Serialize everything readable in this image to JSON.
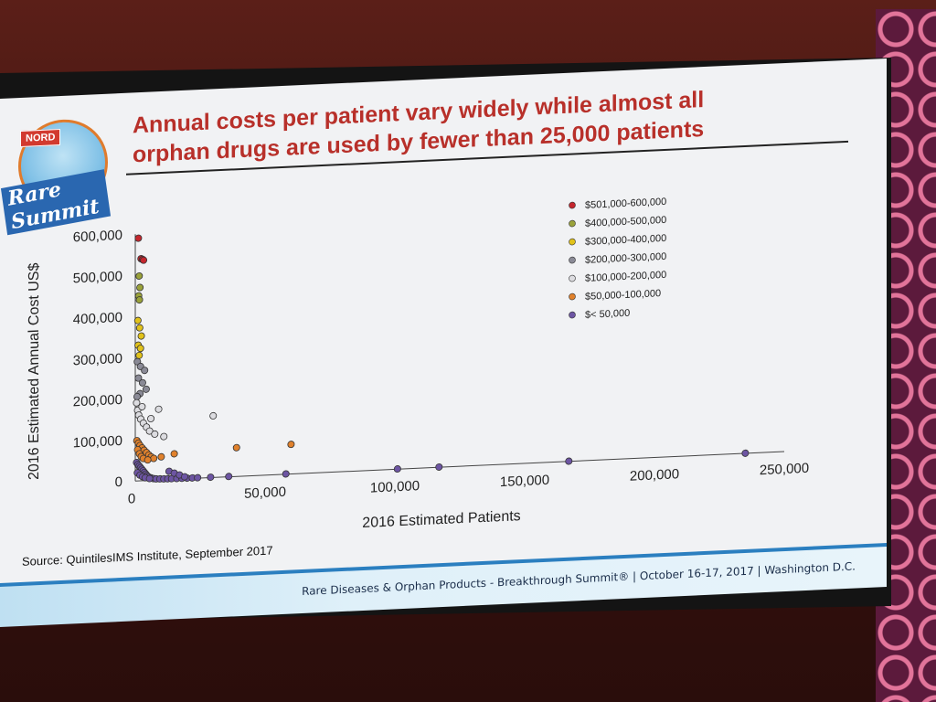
{
  "slide": {
    "title_line1": "Annual costs per patient vary widely while almost all",
    "title_line2": "orphan drugs are used by fewer than 25,000 patients",
    "logo_badge": "NORD",
    "logo_text": "Rare Summit",
    "source": "Source: QuintilesIMS Institute, September 2017",
    "footer": "Rare Diseases & Orphan Products - Breakthrough Summit® | October 16-17, 2017 | Washington D.C."
  },
  "chart_data": {
    "type": "scatter",
    "xlabel": "2016 Estimated Patients",
    "ylabel": "2016 Estimated Annual Cost US$",
    "xlim": [
      0,
      250000
    ],
    "ylim": [
      0,
      600000
    ],
    "x_ticks": [
      "0",
      "50,000",
      "100,000",
      "150,000",
      "200,000",
      "250,000"
    ],
    "y_ticks": [
      "0",
      "100,000",
      "200,000",
      "300,000",
      "400,000",
      "500,000",
      "600,000"
    ],
    "legend_placement": "top-right",
    "series": [
      {
        "name": "$501,000-600,000",
        "color": "#c4262d",
        "points": [
          [
            1200,
            590000
          ],
          [
            2200,
            540000
          ],
          [
            2800,
            538000
          ],
          [
            3200,
            536000
          ]
        ]
      },
      {
        "name": "$400,000-500,000",
        "color": "#9aa23a",
        "points": [
          [
            1500,
            498000
          ],
          [
            1800,
            470000
          ],
          [
            1300,
            450000
          ],
          [
            1600,
            440000
          ]
        ]
      },
      {
        "name": "$300,000-400,000",
        "color": "#e1c21a",
        "points": [
          [
            1000,
            390000
          ],
          [
            1700,
            372000
          ],
          [
            2300,
            352000
          ],
          [
            1100,
            330000
          ],
          [
            2000,
            322000
          ],
          [
            1500,
            305000
          ]
        ]
      },
      {
        "name": "$200,000-300,000",
        "color": "#8a8a96",
        "points": [
          [
            800,
            290000
          ],
          [
            2000,
            278000
          ],
          [
            3600,
            268000
          ],
          [
            1200,
            250000
          ],
          [
            2800,
            238000
          ],
          [
            4200,
            222000
          ],
          [
            1800,
            212000
          ],
          [
            700,
            205000
          ]
        ]
      },
      {
        "name": "$100,000-200,000",
        "color": "#dcdce0",
        "points": [
          [
            500,
            190000
          ],
          [
            900,
            172000
          ],
          [
            1300,
            160000
          ],
          [
            2100,
            150000
          ],
          [
            3100,
            140000
          ],
          [
            4300,
            130000
          ],
          [
            5500,
            120000
          ],
          [
            7500,
            112000
          ],
          [
            9000,
            172000
          ],
          [
            6000,
            150000
          ],
          [
            30000,
            150000
          ],
          [
            11000,
            105000
          ],
          [
            2600,
            180000
          ]
        ]
      },
      {
        "name": "$50,000-100,000",
        "color": "#e0812c",
        "points": [
          [
            600,
            98000
          ],
          [
            1200,
            92000
          ],
          [
            1800,
            86000
          ],
          [
            2600,
            80000
          ],
          [
            3400,
            74000
          ],
          [
            4300,
            68000
          ],
          [
            5200,
            62000
          ],
          [
            6100,
            57000
          ],
          [
            7100,
            53000
          ],
          [
            900,
            76000
          ],
          [
            1600,
            66000
          ],
          [
            2300,
            59000
          ],
          [
            3100,
            54000
          ],
          [
            4800,
            50000
          ],
          [
            15000,
            62000
          ],
          [
            39000,
            70000
          ],
          [
            60000,
            72000
          ],
          [
            10000,
            56000
          ]
        ]
      },
      {
        "name": "$< 50,000",
        "color": "#6d55a3",
        "points": [
          [
            500,
            45000
          ],
          [
            1000,
            40000
          ],
          [
            1500,
            36000
          ],
          [
            2000,
            32000
          ],
          [
            2500,
            28000
          ],
          [
            3000,
            24000
          ],
          [
            3500,
            20000
          ],
          [
            4000,
            16000
          ],
          [
            4500,
            12000
          ],
          [
            5000,
            9000
          ],
          [
            6000,
            6000
          ],
          [
            7000,
            4000
          ],
          [
            8000,
            3000
          ],
          [
            9500,
            2500
          ],
          [
            11000,
            2200
          ],
          [
            12500,
            2000
          ],
          [
            14000,
            1800
          ],
          [
            16000,
            1600
          ],
          [
            18000,
            1500
          ],
          [
            20000,
            1400
          ],
          [
            22000,
            1300
          ],
          [
            24000,
            1200
          ],
          [
            800,
            20000
          ],
          [
            1800,
            14000
          ],
          [
            2800,
            10000
          ],
          [
            3800,
            7000
          ],
          [
            5500,
            4500
          ],
          [
            13000,
            20000
          ],
          [
            15000,
            15000
          ],
          [
            17000,
            10000
          ],
          [
            19000,
            5000
          ],
          [
            29000,
            1000
          ],
          [
            36000,
            800
          ],
          [
            58000,
            700
          ],
          [
            101000,
            500
          ],
          [
            117000,
            500
          ],
          [
            167000,
            400
          ],
          [
            235000,
            350
          ]
        ]
      }
    ]
  }
}
